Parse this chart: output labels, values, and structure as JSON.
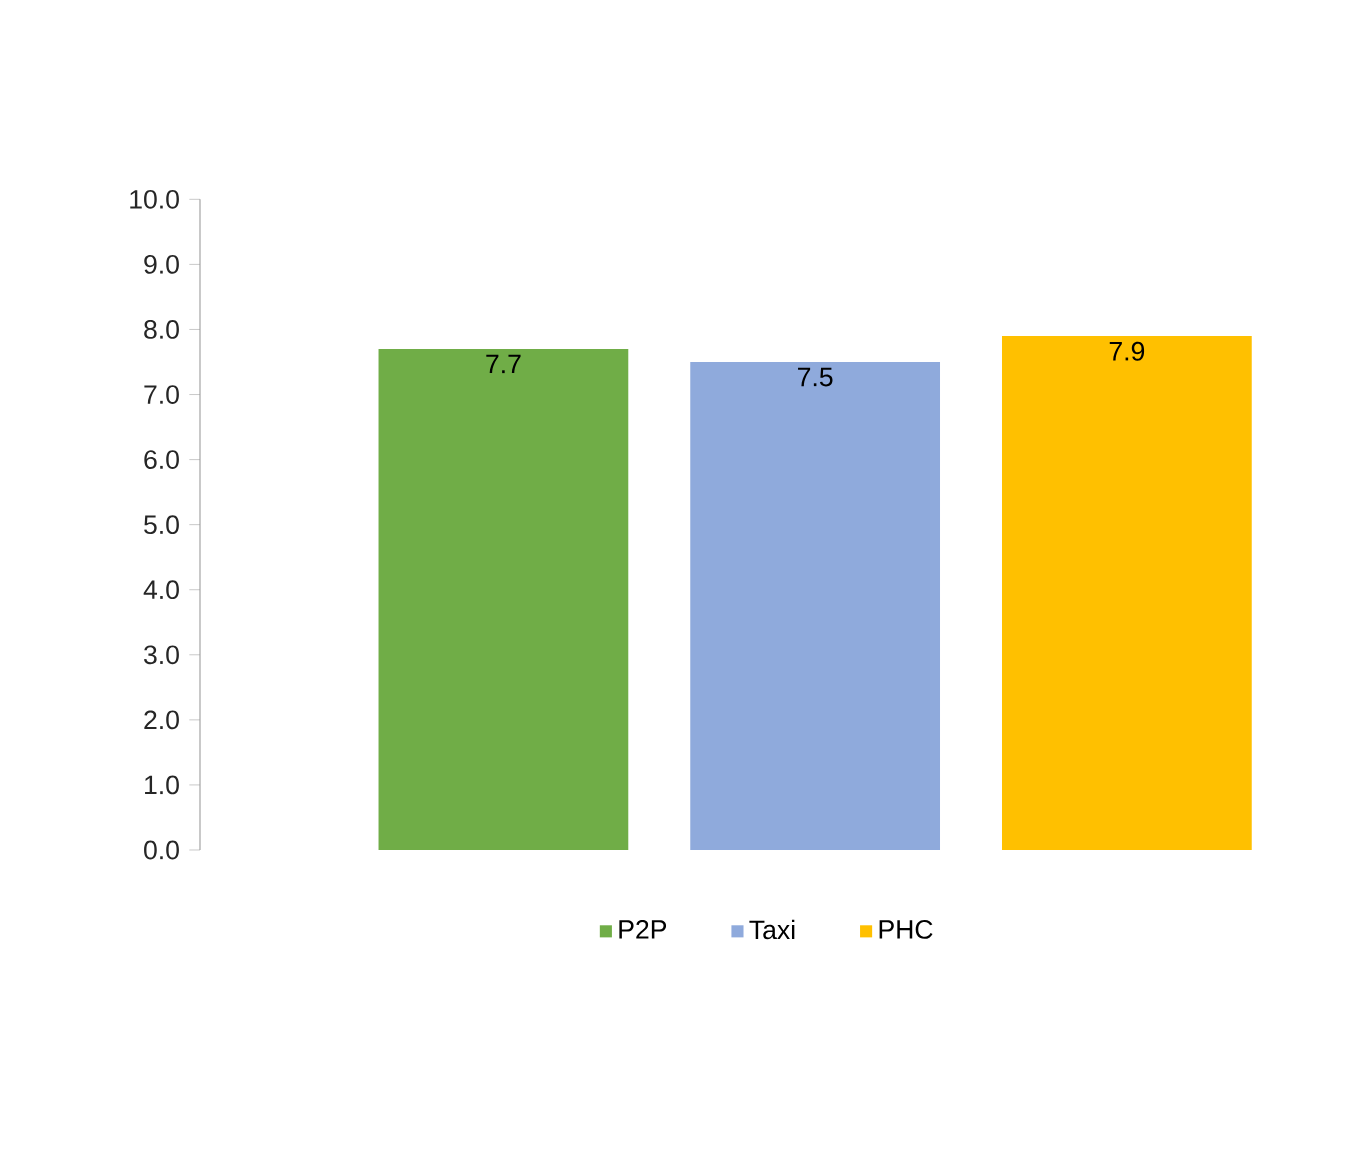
{
  "chart_data": {
    "type": "bar",
    "categories": [
      null
    ],
    "series": [
      {
        "name": "P2P",
        "color": "#70ad47",
        "values": [
          7.7
        ]
      },
      {
        "name": "Taxi",
        "color": "#8faadc",
        "values": [
          7.5
        ]
      },
      {
        "name": "PHC",
        "color": "#ffc000",
        "values": [
          7.9
        ]
      }
    ],
    "ylim": [
      0,
      10
    ],
    "yticks": [
      {
        "value": 0,
        "label": "0.0"
      },
      {
        "value": 1,
        "label": "1.0"
      },
      {
        "value": 2,
        "label": "2.0"
      },
      {
        "value": 3,
        "label": "3.0"
      },
      {
        "value": 4,
        "label": "4.0"
      },
      {
        "value": 5,
        "label": "5.0"
      },
      {
        "value": 6,
        "label": "6.0"
      },
      {
        "value": 7,
        "label": "7.0"
      },
      {
        "value": 8,
        "label": "8.0"
      },
      {
        "value": 9,
        "label": "9.0"
      },
      {
        "value": 10,
        "label": "10.0"
      }
    ],
    "data_labels": true,
    "legend": "bottom",
    "grid": false
  }
}
